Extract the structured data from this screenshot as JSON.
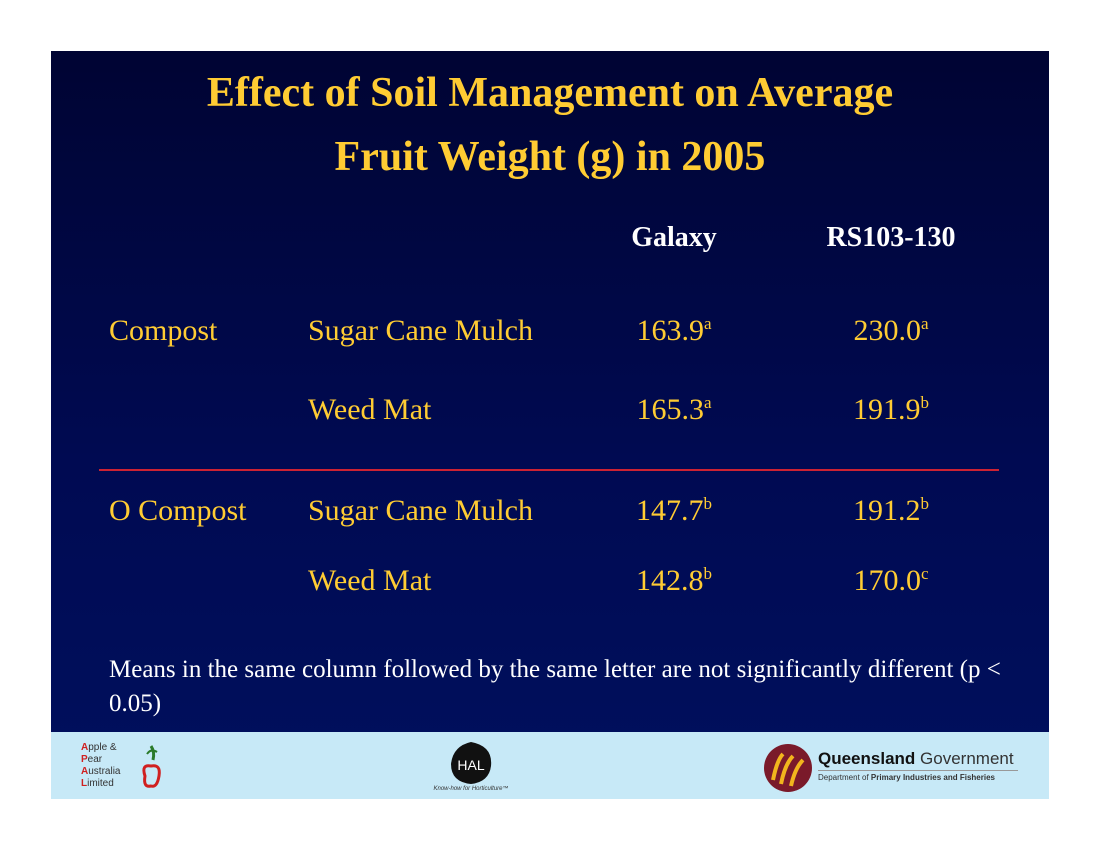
{
  "title": {
    "line1": "Effect of Soil Management on Average",
    "line2": "Fruit Weight (g) in 2005"
  },
  "columns": [
    "Galaxy",
    "RS103-130"
  ],
  "rows": [
    {
      "group": "Compost",
      "cover": "Sugar Cane Mulch",
      "galaxy": "163.9",
      "galaxy_sup": "a",
      "rs": "230.0",
      "rs_sup": "a"
    },
    {
      "group": "",
      "cover": "Weed Mat",
      "galaxy": "165.3",
      "galaxy_sup": "a",
      "rs": "191.9",
      "rs_sup": "b"
    },
    {
      "group": "O Compost",
      "cover": "Sugar Cane Mulch",
      "galaxy": "147.7",
      "galaxy_sup": "b",
      "rs": "191.2",
      "rs_sup": "b"
    },
    {
      "group": "",
      "cover": "Weed Mat",
      "galaxy": "142.8",
      "galaxy_sup": "b",
      "rs": "170.0",
      "rs_sup": "c"
    }
  ],
  "footnote": "Means in the same column followed by the same letter are not significantly different (p < 0.05)",
  "logos": {
    "apal": {
      "lines": [
        "pple &",
        "ear",
        "ustralia",
        "imited"
      ],
      "initials": [
        "A",
        "P",
        "A",
        "L"
      ]
    },
    "hal": {
      "text": "HAL",
      "tagline": "Know-how for Horticulture™"
    },
    "qld": {
      "name_bold": "Queensland",
      "name_rest": " Government",
      "dept_plain": "Department of ",
      "dept_bold": "Primary Industries and Fisheries"
    }
  },
  "colors": {
    "title": "#ffcc33",
    "body_text": "#ffcc33",
    "header_text": "#ffffff",
    "divider": "#cc2233",
    "background": "#000a52",
    "logo_bar": "#c7e9f7"
  }
}
